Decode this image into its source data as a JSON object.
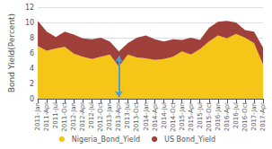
{
  "chart_data": {
    "type": "area",
    "ylabel": "Bond Yield(Percent)",
    "categories": [
      "2011-Jan",
      "2011-Apr",
      "2011-Jul",
      "2011-Oct",
      "2012-Jan",
      "2012-Apr",
      "2012-Jul",
      "2012-Oct",
      "2013-Jan",
      "2013-Apr",
      "2013-Jul",
      "2013-Oct",
      "2014-Jan",
      "2014-Apr",
      "2014-Jul",
      "2014-Oct",
      "2015-Jan",
      "2015-Apr",
      "2015-Jul",
      "2015-Oct",
      "2016-Jan",
      "2016-Apr",
      "2016-Jul",
      "2016-Oct",
      "2017-Jan",
      "2017-Apr"
    ],
    "series": [
      {
        "name": "Nigeria_Bond_Yield",
        "color": "#f5c518",
        "values": [
          6.9,
          6.3,
          6.6,
          6.8,
          5.9,
          5.5,
          5.2,
          5.5,
          5.8,
          4.2,
          5.8,
          5.4,
          5.3,
          5.1,
          5.2,
          5.5,
          6.2,
          5.8,
          6.5,
          7.5,
          8.3,
          7.9,
          8.5,
          8.0,
          7.3,
          4.5
        ]
      },
      {
        "name": "US Bond_Yield",
        "color": "#a0403a",
        "values": [
          3.3,
          2.5,
          1.5,
          2.0,
          2.5,
          2.4,
          2.6,
          2.5,
          1.7,
          2.0,
          1.5,
          2.6,
          3.0,
          2.7,
          2.3,
          2.3,
          1.5,
          2.2,
          1.2,
          1.8,
          1.8,
          2.3,
          1.5,
          1.0,
          1.5,
          2.2
        ]
      }
    ],
    "stacked": true,
    "ylim": [
      0,
      12
    ],
    "yticks": [
      0,
      2,
      4,
      6,
      8,
      10,
      12
    ],
    "grid": true,
    "legend": "bottom",
    "annotations": [
      {
        "type": "arrow",
        "x": "2013-Apr",
        "y_start": 0.2,
        "y_end": 5.6,
        "color": "#4a9fd4"
      }
    ]
  }
}
